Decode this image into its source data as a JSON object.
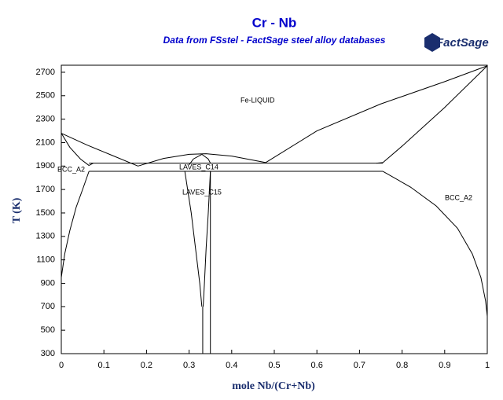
{
  "chart_data": {
    "type": "line",
    "title": "Cr - Nb",
    "subtitle": "Data from FSstel - FactSage steel alloy databases",
    "logo": "FactSage",
    "x_label": "mole Nb/(Cr+Nb)",
    "y_label": "T (K)",
    "color": "#000000",
    "xlim": [
      0,
      1
    ],
    "ylim": [
      300,
      2760
    ],
    "xticks": [
      0,
      0.1,
      0.2,
      0.3,
      0.4,
      0.5,
      0.6,
      0.7,
      0.8,
      0.9,
      1
    ],
    "yticks": [
      300,
      500,
      700,
      900,
      1100,
      1300,
      1500,
      1700,
      1900,
      2100,
      2300,
      2500,
      2700
    ],
    "annotations": [
      "Fe-LIQUID",
      "BCC_A2",
      "LAVES_C14",
      "LAVES_C15",
      "BCC_A2"
    ],
    "lines": [
      {
        "x": [
          0,
          0.06,
          0.12,
          0.18
        ],
        "y": [
          2180,
          2080,
          1990,
          1900
        ]
      },
      {
        "x": [
          0.18,
          0.24,
          0.3,
          0.34,
          0.4,
          0.48
        ],
        "y": [
          1900,
          1965,
          2000,
          2005,
          1985,
          1930
        ]
      },
      {
        "x": [
          0.48,
          0.6,
          0.75,
          0.9,
          1
        ],
        "y": [
          1930,
          2200,
          2430,
          2620,
          2755
        ]
      },
      {
        "x": [
          1,
          0.9,
          0.8,
          0.755
        ],
        "y": [
          2755,
          2400,
          2070,
          1930
        ]
      },
      {
        "x": [
          0,
          0.02,
          0.045,
          0.065
        ],
        "y": [
          2180,
          2060,
          1960,
          1905
        ]
      },
      {
        "x": [
          0.065,
          0.755
        ],
        "y": [
          1925,
          1925
        ]
      },
      {
        "x": [
          0.065,
          0.755
        ],
        "y": [
          1855,
          1855
        ]
      },
      {
        "x": [
          0.065,
          0.075
        ],
        "y": [
          1905,
          1925
        ]
      },
      {
        "x": [
          0.755,
          0.74
        ],
        "y": [
          1930,
          1925
        ]
      },
      {
        "x": [
          0.065,
          0.05,
          0.035,
          0.02,
          0.008,
          0.002,
          0
        ],
        "y": [
          1855,
          1700,
          1550,
          1350,
          1150,
          1000,
          950
        ]
      },
      {
        "x": [
          0.755,
          0.82,
          0.88,
          0.93,
          0.965,
          0.985,
          0.996,
          1
        ],
        "y": [
          1855,
          1720,
          1560,
          1370,
          1150,
          950,
          750,
          620
        ]
      },
      {
        "x": [
          0.29,
          0.305,
          0.315,
          0.325,
          0.33
        ],
        "y": [
          1855,
          1500,
          1200,
          900,
          700
        ]
      },
      {
        "x": [
          0.35,
          0.345,
          0.34,
          0.336,
          0.333
        ],
        "y": [
          1855,
          1500,
          1200,
          900,
          700
        ]
      },
      {
        "x": [
          0.332,
          0.332
        ],
        "y": [
          700,
          300
        ]
      },
      {
        "x": [
          0.35,
          0.35
        ],
        "y": [
          1855,
          300
        ]
      },
      {
        "x": [
          0.3,
          0.31,
          0.33
        ],
        "y": [
          1910,
          1960,
          2000
        ]
      },
      {
        "x": [
          0.33,
          0.345,
          0.35
        ],
        "y": [
          2000,
          1960,
          1925
        ]
      }
    ]
  }
}
